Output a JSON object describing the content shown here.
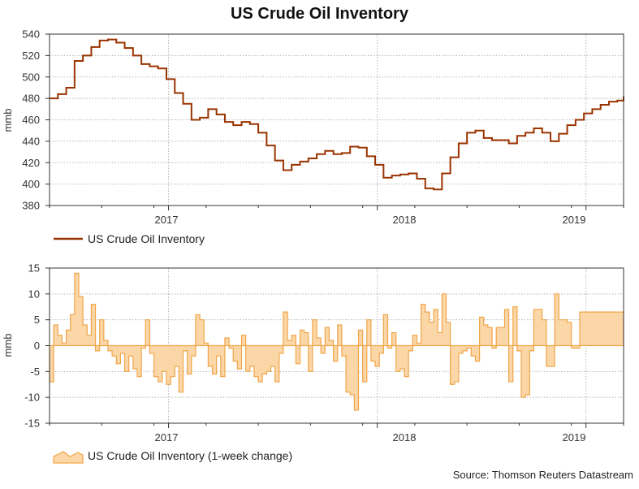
{
  "title": "US Crude Oil Inventory",
  "source": "Source: Thomson Reuters Datastream",
  "colors": {
    "inventory_line": "#9a3300",
    "change_fill": "#fbd6a6",
    "change_stroke": "#f0a64a",
    "grid": "#b5b5b5",
    "axis": "#333333"
  },
  "chart_data": [
    {
      "type": "line",
      "title": "US Crude Oil Inventory",
      "ylabel": "mmb",
      "ylim": [
        380,
        540
      ],
      "yticks": [
        380,
        400,
        420,
        440,
        460,
        480,
        500,
        520,
        540
      ],
      "xlim": [
        2016.5,
        2019.25
      ],
      "xtick_labels": [
        "2017",
        "2018",
        "2019"
      ],
      "grid": true,
      "legend_position": "bottom-left",
      "series": [
        {
          "name": "US Crude Oil Inventory",
          "x": [
            2016.5,
            2016.54,
            2016.58,
            2016.62,
            2016.66,
            2016.7,
            2016.74,
            2016.78,
            2016.82,
            2016.86,
            2016.9,
            2016.94,
            2016.98,
            2017.02,
            2017.06,
            2017.1,
            2017.14,
            2017.18,
            2017.22,
            2017.26,
            2017.3,
            2017.34,
            2017.38,
            2017.42,
            2017.46,
            2017.5,
            2017.54,
            2017.58,
            2017.62,
            2017.66,
            2017.7,
            2017.74,
            2017.78,
            2017.82,
            2017.86,
            2017.9,
            2017.94,
            2017.98,
            2018.02,
            2018.06,
            2018.1,
            2018.14,
            2018.18,
            2018.22,
            2018.26,
            2018.3,
            2018.34,
            2018.38,
            2018.42,
            2018.46,
            2018.5,
            2018.54,
            2018.58,
            2018.62,
            2018.66,
            2018.7,
            2018.74,
            2018.78,
            2018.82,
            2018.86,
            2018.9,
            2018.94,
            2018.98,
            2019.02,
            2019.06,
            2019.1,
            2019.14,
            2019.18,
            2019.22,
            2019.25
          ],
          "values": [
            480,
            484,
            490,
            515,
            520,
            528,
            534,
            535,
            532,
            527,
            520,
            512,
            510,
            508,
            498,
            485,
            475,
            460,
            462,
            470,
            465,
            458,
            455,
            458,
            456,
            448,
            436,
            422,
            413,
            418,
            421,
            424,
            428,
            431,
            428,
            429,
            435,
            434,
            426,
            418,
            406,
            408,
            409,
            410,
            405,
            396,
            395,
            410,
            425,
            438,
            448,
            450,
            443,
            441,
            441,
            438,
            445,
            448,
            452,
            448,
            440,
            447,
            455,
            460,
            466,
            470,
            474,
            477,
            478,
            482
          ]
        }
      ]
    },
    {
      "type": "area",
      "ylabel": "mmb",
      "ylim": [
        -15,
        15
      ],
      "yticks": [
        -15,
        -10,
        -5,
        0,
        5,
        10,
        15
      ],
      "xlim": [
        2016.5,
        2019.25
      ],
      "xtick_labels": [
        "2017",
        "2018",
        "2019"
      ],
      "grid": true,
      "legend_position": "bottom-left",
      "series": [
        {
          "name": "US Crude Oil Inventory (1-week change)",
          "x": [
            2016.5,
            2016.52,
            2016.54,
            2016.56,
            2016.58,
            2016.6,
            2016.62,
            2016.64,
            2016.66,
            2016.68,
            2016.7,
            2016.72,
            2016.74,
            2016.76,
            2016.78,
            2016.8,
            2016.82,
            2016.84,
            2016.86,
            2016.88,
            2016.9,
            2016.92,
            2016.94,
            2016.96,
            2016.98,
            2017.0,
            2017.02,
            2017.04,
            2017.06,
            2017.08,
            2017.1,
            2017.12,
            2017.14,
            2017.16,
            2017.18,
            2017.2,
            2017.22,
            2017.24,
            2017.26,
            2017.28,
            2017.3,
            2017.32,
            2017.34,
            2017.36,
            2017.38,
            2017.4,
            2017.42,
            2017.44,
            2017.46,
            2017.48,
            2017.5,
            2017.52,
            2017.54,
            2017.56,
            2017.58,
            2017.6,
            2017.62,
            2017.64,
            2017.66,
            2017.68,
            2017.7,
            2017.72,
            2017.74,
            2017.76,
            2017.78,
            2017.8,
            2017.82,
            2017.84,
            2017.86,
            2017.88,
            2017.9,
            2017.92,
            2017.94,
            2017.96,
            2017.98,
            2018.0,
            2018.02,
            2018.04,
            2018.06,
            2018.08,
            2018.1,
            2018.12,
            2018.14,
            2018.16,
            2018.18,
            2018.2,
            2018.22,
            2018.24,
            2018.26,
            2018.28,
            2018.3,
            2018.32,
            2018.34,
            2018.36,
            2018.38,
            2018.4,
            2018.42,
            2018.44,
            2018.46,
            2018.48,
            2018.5,
            2018.52,
            2018.54,
            2018.56,
            2018.58,
            2018.6,
            2018.62,
            2018.64,
            2018.66,
            2018.68,
            2018.7,
            2018.72,
            2018.74,
            2018.76,
            2018.78,
            2018.8,
            2018.82,
            2018.84,
            2018.86,
            2018.88,
            2018.9,
            2018.92,
            2018.94,
            2018.96,
            2018.98,
            2019.0,
            2019.02,
            2019.04,
            2019.06,
            2019.08,
            2019.1,
            2019.12,
            2019.14,
            2019.16,
            2019.18,
            2019.2,
            2019.22,
            2019.24
          ],
          "values": [
            -7,
            4,
            2,
            0.5,
            3,
            6,
            14,
            9.5,
            4,
            2,
            8,
            -1,
            5,
            1,
            -1,
            -2,
            -3.5,
            -1.5,
            -5,
            -2,
            -4.5,
            -6,
            -0.5,
            5,
            -1.5,
            -6,
            -7,
            -5,
            -7.5,
            -6,
            -4,
            -9,
            -1,
            -5.5,
            -2,
            6,
            5,
            0.5,
            -4,
            -5.5,
            -2,
            -6,
            1.5,
            -0.5,
            -3,
            -4.5,
            2,
            -5,
            -4,
            -6,
            -7,
            -5.5,
            -5,
            -4,
            -7,
            -1.5,
            6.5,
            1,
            2,
            -3.5,
            3,
            2.5,
            -5,
            5,
            1.5,
            -1.5,
            3.5,
            1,
            -3,
            4,
            -2,
            -9,
            -9.5,
            -12.5,
            3,
            -7,
            5,
            -3,
            -4,
            -1.5,
            6,
            -0.5,
            2.5,
            -5,
            -4.5,
            -6,
            -1,
            2,
            0.5,
            8,
            6.5,
            4.5,
            7,
            2.5,
            10,
            4.5,
            -7.5,
            -7,
            -1.5,
            -1,
            -0.5,
            -2,
            -3,
            5.5,
            4,
            3.5,
            -0.5,
            3.5,
            3.5,
            7,
            -7,
            7.5,
            -1,
            -10,
            -9.5,
            -1,
            7,
            7,
            5,
            -4,
            -4,
            10,
            5,
            5,
            4.5,
            -0.5,
            -0.5,
            6.5,
            6.5,
            6.5,
            6.5,
            6.5,
            6.5,
            6.5,
            6.5,
            6.5,
            6.5,
            6.5
          ]
        }
      ]
    }
  ]
}
